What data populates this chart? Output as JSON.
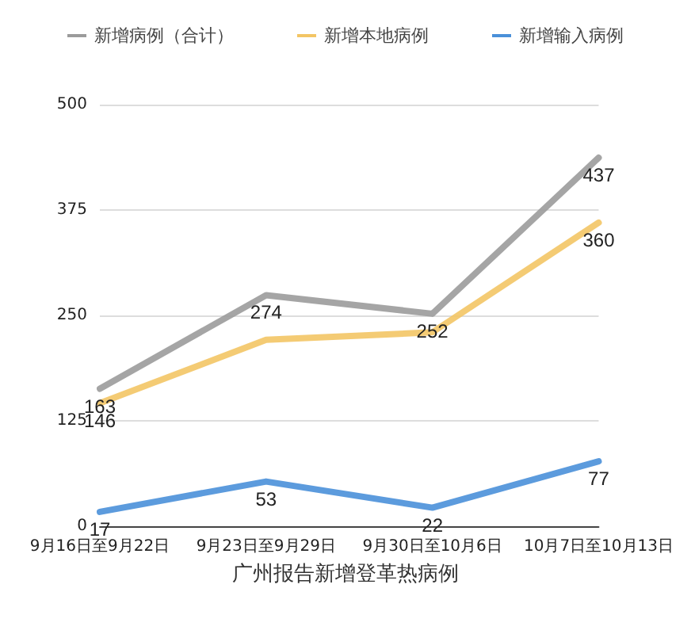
{
  "chart_data": {
    "type": "line",
    "title": "广州报告新增登革热病例",
    "categories": [
      "9月16日至9月22日",
      "9月23日至9月29日",
      "9月30日至10月6日",
      "10月7日至10月13日"
    ],
    "series": [
      {
        "name": "新增病例（合计）",
        "color": "#9b9b9b",
        "values": [
          163,
          274,
          252,
          437
        ],
        "value_labels": [
          "163",
          "274",
          "252",
          "437"
        ]
      },
      {
        "name": "新增本地病例",
        "color": "#f3c565",
        "values": [
          146,
          221,
          230,
          360
        ],
        "value_labels": [
          "146",
          null,
          null,
          "360"
        ]
      },
      {
        "name": "新增输入病例",
        "color": "#4a90d9",
        "values": [
          17,
          53,
          22,
          77
        ],
        "value_labels": [
          "17",
          "53",
          "22",
          "77"
        ]
      }
    ],
    "ylim": [
      0,
      500
    ],
    "yticks": [
      0,
      125,
      250,
      375,
      500
    ],
    "grid": "y",
    "legend": "top",
    "marker": "none",
    "line_style": "solid"
  }
}
